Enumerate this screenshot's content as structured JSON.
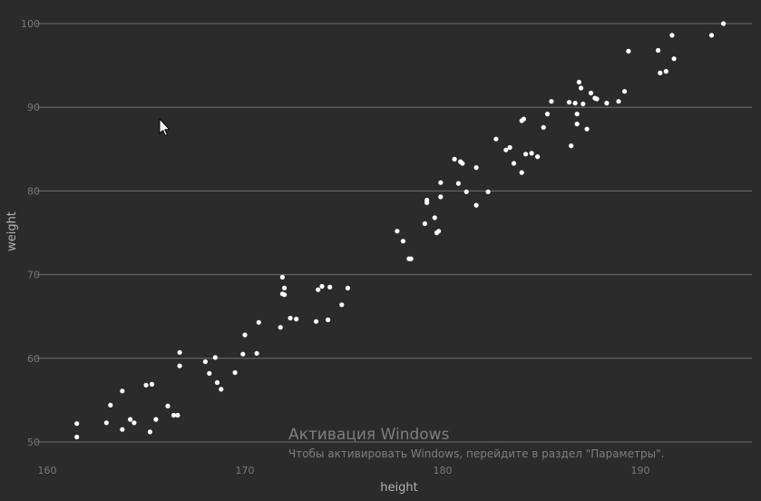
{
  "chart_data": {
    "type": "scatter",
    "xlabel": "height",
    "ylabel": "weight",
    "xlim": [
      158,
      196
    ],
    "ylim": [
      48.5,
      101
    ],
    "xticks": [
      160,
      170,
      180,
      190
    ],
    "yticks": [
      50,
      60,
      70,
      80,
      90,
      100
    ],
    "grid": "horizontal",
    "colors": {
      "background": "#2b2b2b",
      "points": "#ffffff",
      "grid": "#6e6e6e"
    },
    "points": [
      [
        161.5,
        52.2
      ],
      [
        161.5,
        50.6
      ],
      [
        163.0,
        52.3
      ],
      [
        163.2,
        54.4
      ],
      [
        163.8,
        56.1
      ],
      [
        163.8,
        51.5
      ],
      [
        164.2,
        52.7
      ],
      [
        164.4,
        52.3
      ],
      [
        165.0,
        56.8
      ],
      [
        165.2,
        51.2
      ],
      [
        165.3,
        56.9
      ],
      [
        165.5,
        52.7
      ],
      [
        166.1,
        54.3
      ],
      [
        166.4,
        53.2
      ],
      [
        166.6,
        53.2
      ],
      [
        166.7,
        59.1
      ],
      [
        166.7,
        60.7
      ],
      [
        168.0,
        59.6
      ],
      [
        168.2,
        58.2
      ],
      [
        168.5,
        60.1
      ],
      [
        168.6,
        57.1
      ],
      [
        168.8,
        56.3
      ],
      [
        169.5,
        58.3
      ],
      [
        169.9,
        60.5
      ],
      [
        170.0,
        62.8
      ],
      [
        170.6,
        60.6
      ],
      [
        170.7,
        64.3
      ],
      [
        171.8,
        63.7
      ],
      [
        171.9,
        67.7
      ],
      [
        171.9,
        69.7
      ],
      [
        172.0,
        67.6
      ],
      [
        172.0,
        68.4
      ],
      [
        172.3,
        64.8
      ],
      [
        172.6,
        64.7
      ],
      [
        173.6,
        64.4
      ],
      [
        173.7,
        68.2
      ],
      [
        173.9,
        68.6
      ],
      [
        174.2,
        64.6
      ],
      [
        174.3,
        68.5
      ],
      [
        174.9,
        66.4
      ],
      [
        175.2,
        68.4
      ],
      [
        177.7,
        75.2
      ],
      [
        178.0,
        74.0
      ],
      [
        178.3,
        71.9
      ],
      [
        178.4,
        71.9
      ],
      [
        179.1,
        76.1
      ],
      [
        179.2,
        78.6
      ],
      [
        179.2,
        78.9
      ],
      [
        179.6,
        76.8
      ],
      [
        179.7,
        75.0
      ],
      [
        179.8,
        75.2
      ],
      [
        179.9,
        79.3
      ],
      [
        179.9,
        81.0
      ],
      [
        180.6,
        83.8
      ],
      [
        180.8,
        80.9
      ],
      [
        180.9,
        83.5
      ],
      [
        181.0,
        83.3
      ],
      [
        181.2,
        79.9
      ],
      [
        181.7,
        78.3
      ],
      [
        181.7,
        82.8
      ],
      [
        182.3,
        79.9
      ],
      [
        182.7,
        86.2
      ],
      [
        183.2,
        84.9
      ],
      [
        183.4,
        85.2
      ],
      [
        183.6,
        83.3
      ],
      [
        184.0,
        82.2
      ],
      [
        184.0,
        88.4
      ],
      [
        184.1,
        88.6
      ],
      [
        184.2,
        84.4
      ],
      [
        184.5,
        84.5
      ],
      [
        184.8,
        84.1
      ],
      [
        185.1,
        87.6
      ],
      [
        185.3,
        89.2
      ],
      [
        185.5,
        90.7
      ],
      [
        186.4,
        90.6
      ],
      [
        186.5,
        85.4
      ],
      [
        186.7,
        90.5
      ],
      [
        186.8,
        89.2
      ],
      [
        186.8,
        88.0
      ],
      [
        186.9,
        93.0
      ],
      [
        187.0,
        92.3
      ],
      [
        187.1,
        90.4
      ],
      [
        187.3,
        87.4
      ],
      [
        187.5,
        91.7
      ],
      [
        187.7,
        91.1
      ],
      [
        187.8,
        91.0
      ],
      [
        188.3,
        90.5
      ],
      [
        188.9,
        90.7
      ],
      [
        189.2,
        91.9
      ],
      [
        189.4,
        96.7
      ],
      [
        190.9,
        96.8
      ],
      [
        191.0,
        94.1
      ],
      [
        191.3,
        94.3
      ],
      [
        191.6,
        98.6
      ],
      [
        191.7,
        95.8
      ],
      [
        193.6,
        98.6
      ],
      [
        194.2,
        100.0
      ]
    ]
  },
  "watermark": {
    "title": "Активация Windows",
    "subtitle": "Чтобы активировать Windows, перейдите в раздел \"Параметры\"."
  }
}
